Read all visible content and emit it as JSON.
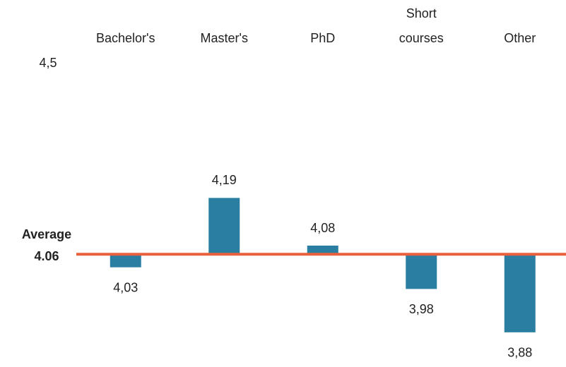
{
  "chart_data": {
    "type": "bar",
    "categories": [
      "Bachelor's",
      "Master's",
      "PhD",
      "Short courses",
      "Other"
    ],
    "values": [
      4.03,
      4.19,
      4.08,
      3.98,
      3.88
    ],
    "value_labels": [
      "4,03",
      "4,19",
      "4,08",
      "3,98",
      "3,88"
    ],
    "color": "#2a7ea1",
    "ylim": [
      3.8,
      4.5
    ],
    "yticks": [
      {
        "value": 4.5,
        "label": "4,5"
      }
    ],
    "reference_line": {
      "label": "Average",
      "value": 4.06,
      "color": "#e8603c"
    }
  }
}
